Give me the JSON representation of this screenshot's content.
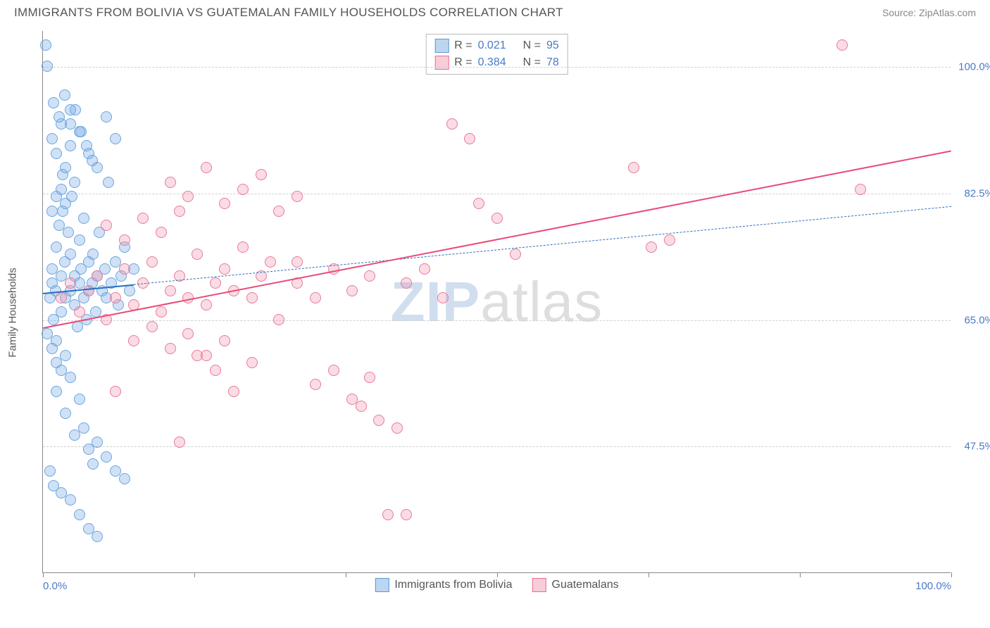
{
  "header": {
    "title": "IMMIGRANTS FROM BOLIVIA VS GUATEMALAN FAMILY HOUSEHOLDS CORRELATION CHART",
    "source_prefix": "Source: ",
    "source_name": "ZipAtlas.com"
  },
  "watermark": {
    "zip": "ZIP",
    "atlas": "atlas"
  },
  "chart": {
    "type": "scatter",
    "ylabel": "Family Households",
    "background_color": "#ffffff",
    "grid_color": "#d0d0d0",
    "axis_color": "#888888",
    "label_color": "#555555",
    "tick_label_color": "#4a7ac7",
    "tick_fontsize": 15,
    "label_fontsize": 15,
    "title_fontsize": 17,
    "xlim": [
      0,
      100
    ],
    "ylim": [
      30,
      105
    ],
    "x_ticks": [
      0,
      16.67,
      33.33,
      50,
      66.67,
      83.33,
      100
    ],
    "x_tick_labels_shown": {
      "0": "0.0%",
      "100": "100.0%"
    },
    "y_gridlines": [
      47.5,
      65.0,
      82.5,
      100.0
    ],
    "y_tick_labels": [
      "47.5%",
      "65.0%",
      "82.5%",
      "100.0%"
    ],
    "marker_radius": 8,
    "marker_border_width": 1.3,
    "series": [
      {
        "id": "bolivia",
        "label": "Immigrants from Bolivia",
        "fill_color": "rgba(120,170,230,0.35)",
        "stroke_color": "#6aa6e0",
        "swatch_fill": "#bcd6f2",
        "swatch_border": "#5c96d4",
        "R": "0.021",
        "N": "95",
        "trend": {
          "solid": {
            "x1": 0,
            "y1": 68.8,
            "x2": 10,
            "y2": 70.0,
            "color": "#2e6fc0",
            "width": 2.5
          },
          "dashed": {
            "x1": 0,
            "y1": 68.8,
            "x2": 100,
            "y2": 80.8,
            "color": "#2e6fc0",
            "width": 1.3,
            "dash": "6 5"
          }
        },
        "points": [
          [
            0.3,
            103
          ],
          [
            0.5,
            100
          ],
          [
            0.8,
            68
          ],
          [
            1,
            70
          ],
          [
            1,
            72
          ],
          [
            1.2,
            65
          ],
          [
            1.4,
            69
          ],
          [
            1.5,
            75
          ],
          [
            1.5,
            62
          ],
          [
            1.8,
            78
          ],
          [
            2,
            66
          ],
          [
            2,
            71
          ],
          [
            2.2,
            85
          ],
          [
            2.2,
            80
          ],
          [
            2.4,
            73
          ],
          [
            2.5,
            68
          ],
          [
            2.5,
            60
          ],
          [
            2.8,
            77
          ],
          [
            3,
            69
          ],
          [
            3,
            74
          ],
          [
            3.2,
            82
          ],
          [
            3.5,
            67
          ],
          [
            3.5,
            71
          ],
          [
            3.8,
            64
          ],
          [
            4,
            70
          ],
          [
            4,
            76
          ],
          [
            4.2,
            72
          ],
          [
            4.5,
            68
          ],
          [
            4.5,
            79
          ],
          [
            4.8,
            65
          ],
          [
            5,
            73
          ],
          [
            5,
            69
          ],
          [
            5.4,
            70
          ],
          [
            5.5,
            74
          ],
          [
            5.8,
            66
          ],
          [
            6,
            71
          ],
          [
            6.2,
            77
          ],
          [
            6.5,
            69
          ],
          [
            6.8,
            72
          ],
          [
            7,
            68
          ],
          [
            7.2,
            84
          ],
          [
            7.5,
            70
          ],
          [
            8,
            73
          ],
          [
            8.3,
            67
          ],
          [
            8.6,
            71
          ],
          [
            9,
            75
          ],
          [
            9.5,
            69
          ],
          [
            10,
            72
          ],
          [
            1.5,
            55
          ],
          [
            2,
            58
          ],
          [
            2.5,
            52
          ],
          [
            3,
            57
          ],
          [
            3.5,
            49
          ],
          [
            4,
            54
          ],
          [
            4.5,
            50
          ],
          [
            5,
            47
          ],
          [
            5.5,
            45
          ],
          [
            6,
            48
          ],
          [
            1,
            90
          ],
          [
            1.5,
            88
          ],
          [
            2,
            92
          ],
          [
            2.5,
            86
          ],
          [
            3,
            89
          ],
          [
            3.5,
            84
          ],
          [
            1,
            80
          ],
          [
            1.5,
            82
          ],
          [
            2,
            83
          ],
          [
            2.5,
            81
          ],
          [
            0.5,
            63
          ],
          [
            1,
            61
          ],
          [
            1.5,
            59
          ],
          [
            0.8,
            44
          ],
          [
            1.2,
            42
          ],
          [
            2,
            41
          ],
          [
            3,
            40
          ],
          [
            4,
            38
          ],
          [
            5,
            36
          ],
          [
            6,
            35
          ],
          [
            7,
            46
          ],
          [
            8,
            44
          ],
          [
            9,
            43
          ],
          [
            3,
            94
          ],
          [
            4,
            91
          ],
          [
            5,
            88
          ],
          [
            6,
            86
          ],
          [
            7,
            93
          ],
          [
            8,
            90
          ],
          [
            1.2,
            95
          ],
          [
            1.8,
            93
          ],
          [
            2.4,
            96
          ],
          [
            3,
            92
          ],
          [
            3.6,
            94
          ],
          [
            4.2,
            91
          ],
          [
            4.8,
            89
          ],
          [
            5.4,
            87
          ]
        ]
      },
      {
        "id": "guatemalans",
        "label": "Guatemalans",
        "fill_color": "rgba(240,140,165,0.30)",
        "stroke_color": "#ea7a9a",
        "swatch_fill": "#f6cdd8",
        "swatch_border": "#e67090",
        "R": "0.384",
        "N": "78",
        "trend": {
          "solid": {
            "x1": 0,
            "y1": 64.0,
            "x2": 100,
            "y2": 88.5,
            "color": "#e94b78",
            "width": 2.8
          },
          "dashed": null
        },
        "points": [
          [
            2,
            68
          ],
          [
            3,
            70
          ],
          [
            4,
            66
          ],
          [
            5,
            69
          ],
          [
            6,
            71
          ],
          [
            7,
            65
          ],
          [
            8,
            68
          ],
          [
            9,
            72
          ],
          [
            10,
            67
          ],
          [
            11,
            70
          ],
          [
            12,
            73
          ],
          [
            13,
            66
          ],
          [
            14,
            69
          ],
          [
            15,
            71
          ],
          [
            16,
            68
          ],
          [
            17,
            74
          ],
          [
            18,
            67
          ],
          [
            19,
            70
          ],
          [
            20,
            72
          ],
          [
            21,
            69
          ],
          [
            22,
            75
          ],
          [
            23,
            68
          ],
          [
            24,
            71
          ],
          [
            25,
            73
          ],
          [
            14,
            84
          ],
          [
            16,
            82
          ],
          [
            18,
            86
          ],
          [
            20,
            81
          ],
          [
            22,
            83
          ],
          [
            24,
            85
          ],
          [
            26,
            80
          ],
          [
            28,
            82
          ],
          [
            30,
            56
          ],
          [
            32,
            58
          ],
          [
            34,
            54
          ],
          [
            36,
            57
          ],
          [
            17,
            60
          ],
          [
            19,
            58
          ],
          [
            21,
            55
          ],
          [
            23,
            59
          ],
          [
            7,
            78
          ],
          [
            9,
            76
          ],
          [
            11,
            79
          ],
          [
            13,
            77
          ],
          [
            15,
            80
          ],
          [
            45,
            92
          ],
          [
            47,
            90
          ],
          [
            40,
            70
          ],
          [
            42,
            72
          ],
          [
            44,
            68
          ],
          [
            48,
            81
          ],
          [
            50,
            79
          ],
          [
            52,
            74
          ],
          [
            35,
            53
          ],
          [
            37,
            51
          ],
          [
            39,
            50
          ],
          [
            15,
            48
          ],
          [
            10,
            62
          ],
          [
            12,
            64
          ],
          [
            14,
            61
          ],
          [
            16,
            63
          ],
          [
            18,
            60
          ],
          [
            20,
            62
          ],
          [
            65,
            86
          ],
          [
            67,
            75
          ],
          [
            69,
            76
          ],
          [
            88,
            103
          ],
          [
            90,
            83
          ],
          [
            38,
            38
          ],
          [
            40,
            38
          ],
          [
            28,
            70
          ],
          [
            30,
            68
          ],
          [
            32,
            72
          ],
          [
            34,
            69
          ],
          [
            36,
            71
          ],
          [
            26,
            65
          ],
          [
            28,
            73
          ],
          [
            8,
            55
          ]
        ]
      }
    ],
    "legend_top": {
      "R_label": "R  =",
      "N_label": "N  ="
    }
  }
}
